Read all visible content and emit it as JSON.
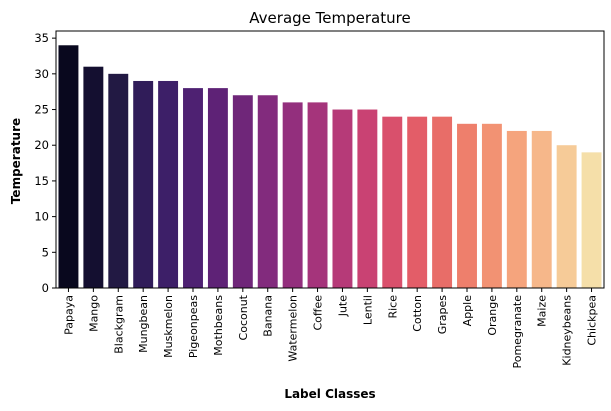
{
  "chart_data": {
    "type": "bar",
    "title": "Average Temperature",
    "xlabel": "Label Classes",
    "ylabel": "Temperature",
    "categories": [
      "Papaya",
      "Mango",
      "Blackgram",
      "Mungbean",
      "Muskmelon",
      "Pigeonpeas",
      "Mothbeans",
      "Coconut",
      "Banana",
      "Watermelon",
      "Coffee",
      "Jute",
      "Lentil",
      "Rice",
      "Cotton",
      "Grapes",
      "Apple",
      "Orange",
      "Pomegranate",
      "Maize",
      "Kidneybeans",
      "Chickpea"
    ],
    "values": [
      34,
      31,
      30,
      29,
      29,
      28,
      28,
      27,
      27,
      26,
      26,
      25,
      25,
      24,
      24,
      24,
      23,
      23,
      22,
      22,
      20,
      19
    ],
    "ylim": [
      0,
      36
    ],
    "yticks": [
      0,
      5,
      10,
      15,
      20,
      25,
      30,
      35
    ],
    "grid": false,
    "legend": "none",
    "palette": "magma",
    "colors": [
      "#09081e",
      "#140f30",
      "#221943",
      "#301c59",
      "#3d1f68",
      "#4e2172",
      "#5e2276",
      "#6f2679",
      "#822b7d",
      "#932f7d",
      "#a5347b",
      "#b63a78",
      "#c94273",
      "#d9506c",
      "#e35d68",
      "#e86d68",
      "#ee7f6c",
      "#f29273",
      "#f5a47d",
      "#f6b78a",
      "#f6cb98",
      "#f5dfa9"
    ]
  }
}
